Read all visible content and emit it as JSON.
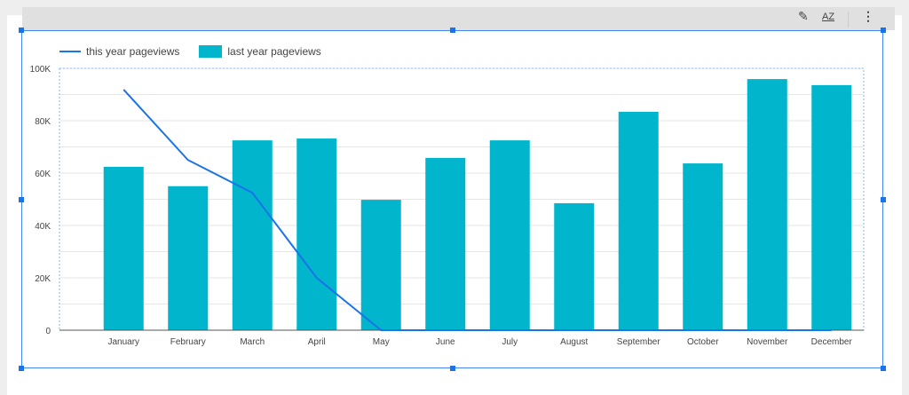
{
  "toolbar": {
    "edit_icon": "pencil-icon",
    "sort_icon": "sort-az-icon",
    "more_icon": "more-vert-icon",
    "sort_label": "AZ"
  },
  "colors": {
    "line": "#1a73e8",
    "bar": "#00b5cc"
  },
  "chart_data": {
    "type": "bar",
    "categories": [
      "January",
      "February",
      "March",
      "April",
      "May",
      "June",
      "July",
      "August",
      "September",
      "October",
      "November",
      "December"
    ],
    "series": [
      {
        "name": "this year pageviews",
        "type": "line",
        "values": [
          91900,
          65000,
          52500,
          20000,
          0,
          0,
          0,
          0,
          0,
          0,
          0,
          0
        ]
      },
      {
        "name": "last year pageviews",
        "type": "bar",
        "values": [
          62400,
          55000,
          72500,
          73200,
          49800,
          65800,
          72500,
          48500,
          83400,
          63700,
          95900,
          93600
        ]
      }
    ],
    "yticks": [
      {
        "v": 0,
        "label": "0"
      },
      {
        "v": 20000,
        "label": "20K"
      },
      {
        "v": 40000,
        "label": "40K"
      },
      {
        "v": 60000,
        "label": "60K"
      },
      {
        "v": 80000,
        "label": "80K"
      },
      {
        "v": 100000,
        "label": "100K"
      }
    ],
    "ylim": [
      0,
      100000
    ],
    "legend": "top-left",
    "grid": true
  }
}
